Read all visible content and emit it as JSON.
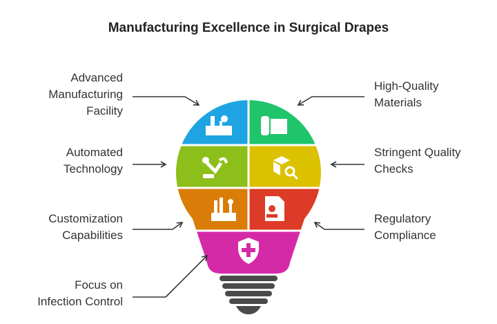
{
  "title": "Manufacturing Excellence in Surgical Drapes",
  "nodes": [
    {
      "lines": [
        "Advanced",
        "Manufacturing",
        "Facility"
      ],
      "side": "left",
      "color": "#1ea4e2"
    },
    {
      "lines": [
        "High-Quality",
        "Materials"
      ],
      "side": "right",
      "color": "#1fc46b"
    },
    {
      "lines": [
        "Automated",
        "Technology"
      ],
      "side": "left",
      "color": "#8dbf1b"
    },
    {
      "lines": [
        "Stringent Quality",
        "Checks"
      ],
      "side": "right",
      "color": "#dcc100"
    },
    {
      "lines": [
        "Customization",
        "Capabilities"
      ],
      "side": "left",
      "color": "#d97c08"
    },
    {
      "lines": [
        "Regulatory",
        "Compliance"
      ],
      "side": "right",
      "color": "#dc3b27"
    },
    {
      "lines": [
        "Focus on",
        "Infection Control"
      ],
      "side": "left",
      "color": "#d52aa8"
    }
  ]
}
